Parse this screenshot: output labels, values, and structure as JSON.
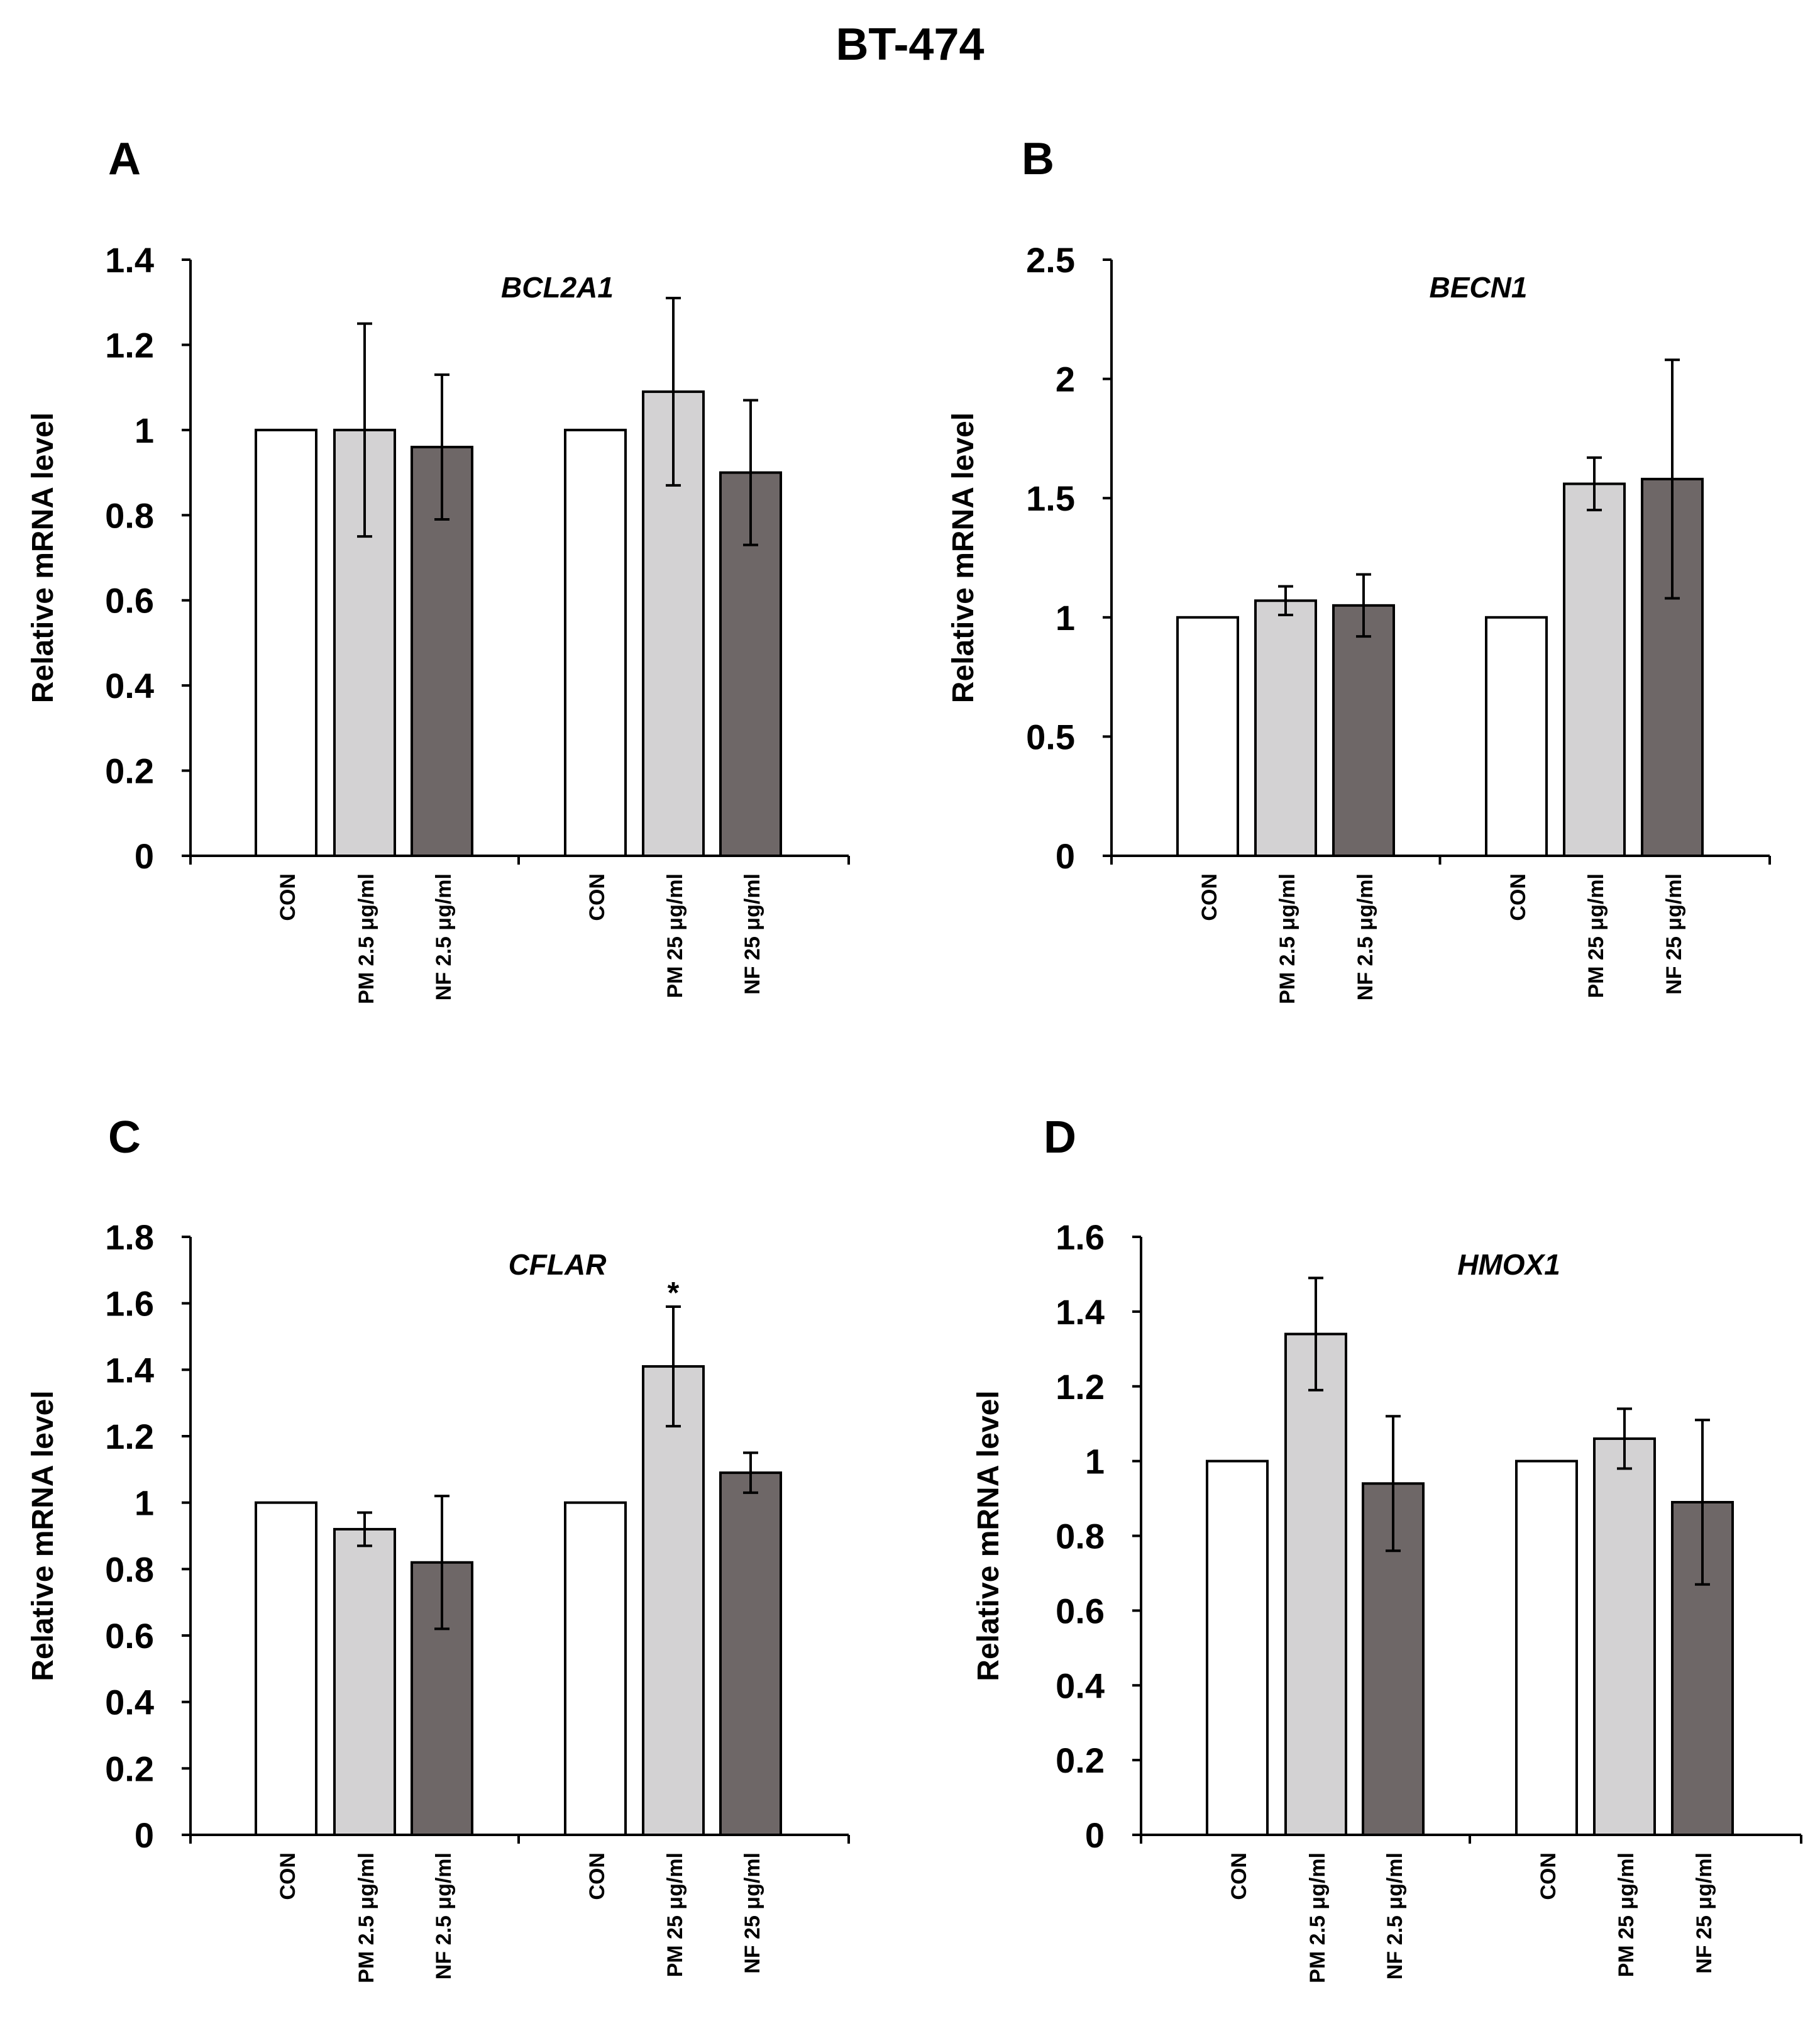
{
  "figure": {
    "title": "BT-474"
  },
  "colors": {
    "con": "#ffffff",
    "pm": "#d3d2d3",
    "nf": "#6e6767",
    "stroke": "#000000"
  },
  "chart_data": [
    {
      "panel": "A",
      "type": "bar",
      "title": "BCL2A1",
      "ylabel": "Relative mRNA level",
      "ylim": [
        0,
        1.4
      ],
      "yticks": [
        "0",
        "0.2",
        "0.4",
        "0.6",
        "0.8",
        "1",
        "1.2",
        "1.4"
      ],
      "categories": [
        "CON",
        "PM 2.5 μg/ml",
        "NF 2.5 μg/ml",
        "CON",
        "PM 25 μg/ml",
        "NF 25 μg/ml"
      ],
      "values": [
        1.0,
        1.0,
        0.96,
        1.0,
        1.09,
        0.9
      ],
      "errors": [
        null,
        0.25,
        0.17,
        null,
        0.22,
        0.17
      ],
      "annotations": [
        "",
        "",
        "",
        "",
        "",
        ""
      ]
    },
    {
      "panel": "B",
      "type": "bar",
      "title": "BECN1",
      "ylabel": "Relative mRNA level",
      "ylim": [
        0,
        2.5
      ],
      "yticks": [
        "0",
        "0.5",
        "1",
        "1.5",
        "2",
        "2.5"
      ],
      "categories": [
        "CON",
        "PM 2.5 μg/ml",
        "NF 2.5 μg/ml",
        "CON",
        "PM 25 μg/ml",
        "NF 25 μg/ml"
      ],
      "values": [
        1.0,
        1.07,
        1.05,
        1.0,
        1.56,
        1.58
      ],
      "errors": [
        null,
        0.06,
        0.13,
        null,
        0.11,
        0.5
      ],
      "annotations": [
        "",
        "",
        "",
        "",
        "",
        ""
      ]
    },
    {
      "panel": "C",
      "type": "bar",
      "title": "CFLAR",
      "ylabel": "Relative mRNA level",
      "ylim": [
        0,
        1.8
      ],
      "yticks": [
        "0",
        "0.2",
        "0.4",
        "0.6",
        "0.8",
        "1",
        "1.2",
        "1.4",
        "1.6",
        "1.8"
      ],
      "categories": [
        "CON",
        "PM 2.5 μg/ml",
        "NF 2.5 μg/ml",
        "CON",
        "PM 25 μg/ml",
        "NF 25 μg/ml"
      ],
      "values": [
        1.0,
        0.92,
        0.82,
        1.0,
        1.41,
        1.09
      ],
      "errors": [
        null,
        0.05,
        0.2,
        null,
        0.18,
        0.06
      ],
      "annotations": [
        "",
        "",
        "",
        "",
        "*",
        ""
      ]
    },
    {
      "panel": "D",
      "type": "bar",
      "title": "HMOX1",
      "ylabel": "Relative mRNA level",
      "ylim": [
        0,
        1.6
      ],
      "yticks": [
        "0",
        "0.2",
        "0.4",
        "0.6",
        "0.8",
        "1",
        "1.2",
        "1.4",
        "1.6"
      ],
      "categories": [
        "CON",
        "PM 2.5 μg/ml",
        "NF 2.5 μg/ml",
        "CON",
        "PM 25 μg/ml",
        "NF 25 μg/ml"
      ],
      "values": [
        1.0,
        1.34,
        0.94,
        1.0,
        1.06,
        0.89
      ],
      "errors": [
        null,
        0.15,
        0.18,
        null,
        0.08,
        0.22
      ],
      "annotations": [
        "",
        "",
        "",
        "",
        "",
        ""
      ]
    }
  ]
}
